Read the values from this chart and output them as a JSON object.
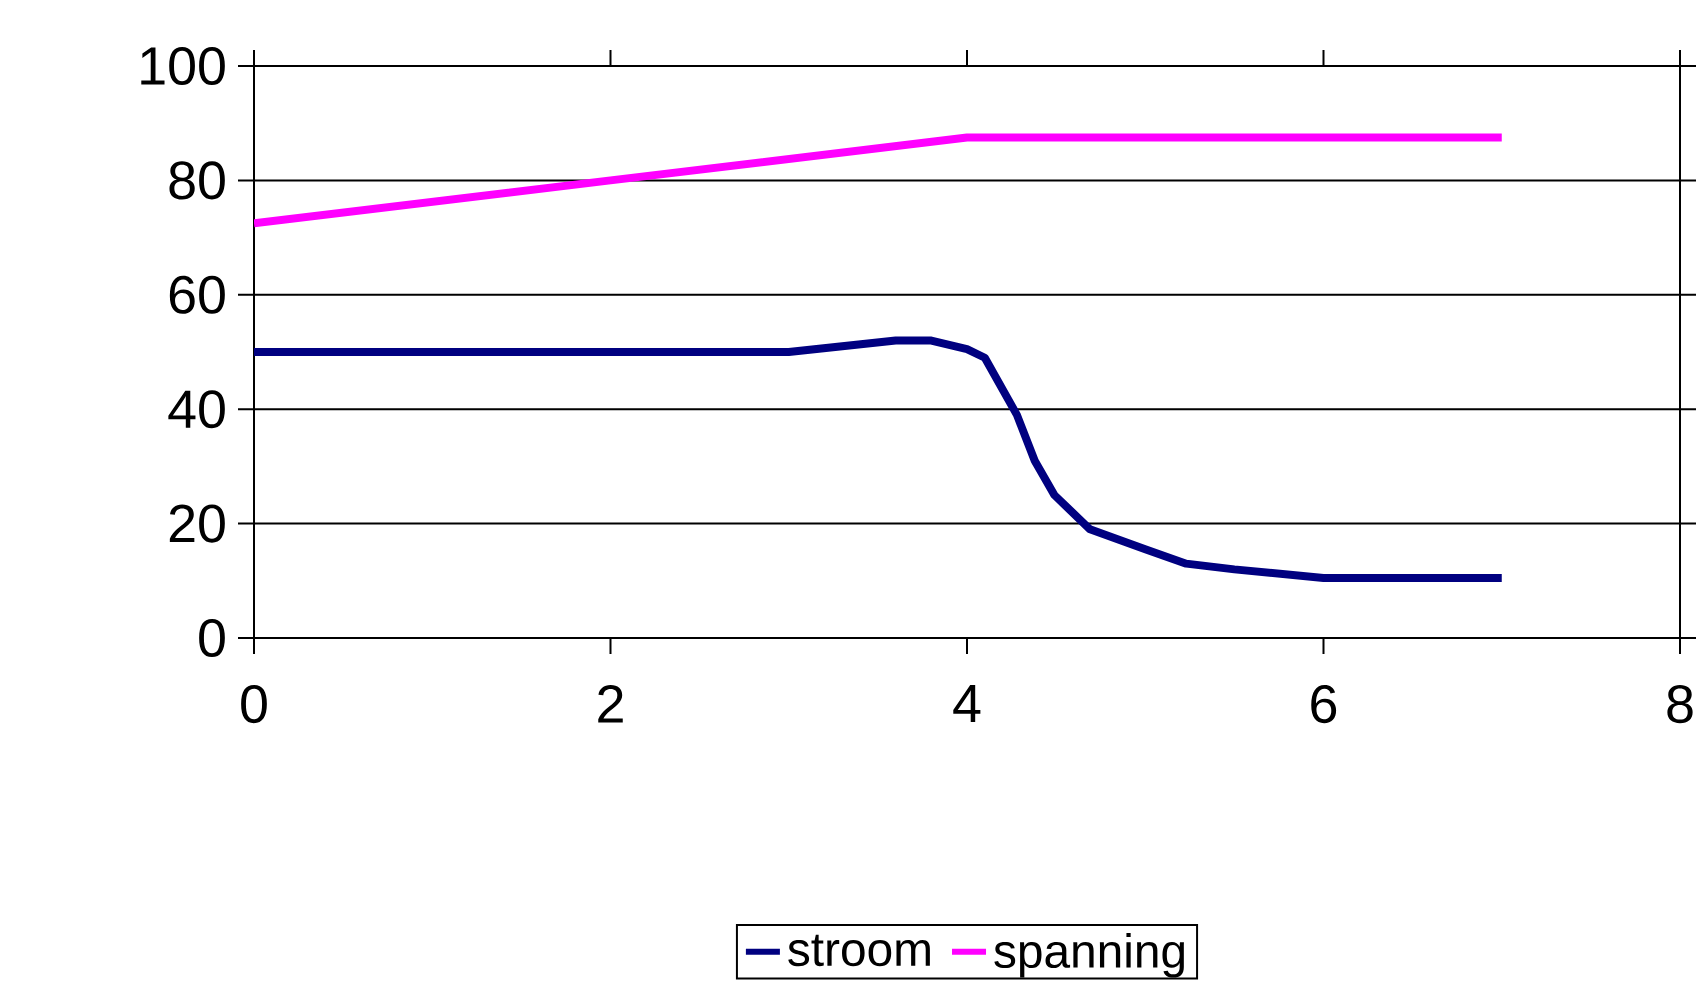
{
  "chart_data": {
    "type": "line",
    "xlim": [
      0,
      8
    ],
    "xticks": [
      0,
      2,
      4,
      6,
      8
    ],
    "ylim": [
      0,
      100
    ],
    "yticks": [
      0,
      20,
      40,
      60,
      80,
      100
    ],
    "grid": "y",
    "legend": "bottom",
    "marker": "none",
    "line_style": "solid",
    "series": [
      {
        "name": "stroom",
        "color": "#000080",
        "x": [
          0,
          1,
          2,
          3,
          3.3,
          3.6,
          3.8,
          4,
          4.1,
          4.28,
          4.38,
          4.49,
          4.69,
          5,
          5.23,
          5.5,
          6,
          6.5,
          7
        ],
        "values": [
          50,
          50,
          50,
          50,
          51,
          52,
          52,
          50.5,
          49,
          39,
          31,
          25,
          19,
          15.5,
          13,
          12,
          10.5,
          10.5,
          10.5
        ]
      },
      {
        "name": "spanning",
        "color": "#ff00ff",
        "x": [
          0,
          2,
          4,
          5,
          6,
          7
        ],
        "values": [
          72.5,
          80,
          87.5,
          87.5,
          87.5,
          87.5
        ]
      }
    ]
  }
}
